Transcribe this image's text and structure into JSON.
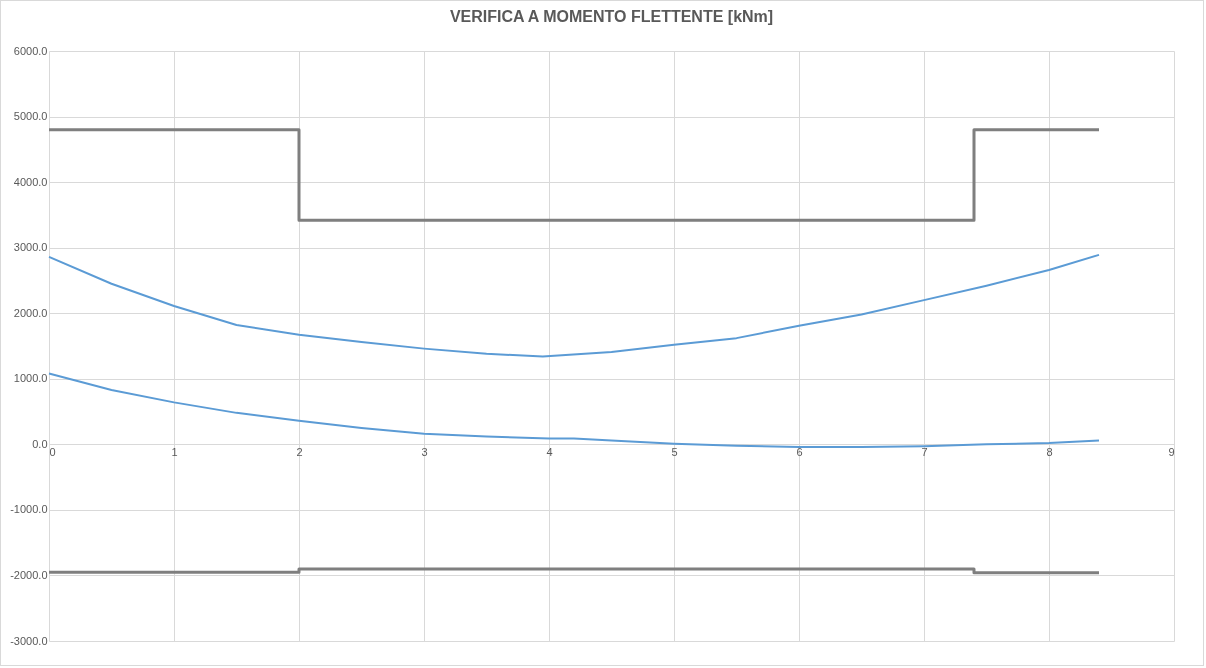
{
  "chart_data": {
    "type": "line",
    "title": "VERIFICA A MOMENTO FLETTENTE [kNm]",
    "series": [
      {
        "color": "#7f7f7f",
        "x": [
          0,
          2,
          2,
          7.4,
          7.4,
          8.4
        ],
        "values": [
          4800,
          4800,
          3420,
          3420,
          4800,
          4800
        ]
      },
      {
        "color": "#7f7f7f",
        "x": [
          0,
          2,
          2,
          7.4,
          7.4,
          8.4
        ],
        "values": [
          -1950,
          -1950,
          -1900,
          -1900,
          -1960,
          -1960
        ]
      },
      {
        "color": "#5b9bd5",
        "x": [
          0,
          0.5,
          1,
          1.5,
          2,
          2.5,
          3,
          3.5,
          3.95,
          4.5,
          5,
          5.5,
          6,
          6.5,
          7,
          7.5,
          8,
          8.4
        ],
        "values": [
          2860,
          2450,
          2110,
          1820,
          1670,
          1560,
          1460,
          1380,
          1340,
          1410,
          1520,
          1620,
          1810,
          1980,
          2200,
          2420,
          2660,
          2890
        ]
      },
      {
        "color": "#5b9bd5",
        "x": [
          0,
          0.5,
          1,
          1.5,
          2,
          2.5,
          3,
          3.5,
          4,
          4.2,
          4.5,
          5,
          5.5,
          6,
          6.5,
          7,
          7.5,
          8,
          8.4
        ],
        "values": [
          1080,
          830,
          640,
          480,
          360,
          250,
          160,
          120,
          90,
          90,
          60,
          10,
          -20,
          -40,
          -40,
          -30,
          0,
          20,
          60
        ]
      }
    ],
    "xlim": [
      0,
      9
    ],
    "xticks": [
      0,
      1,
      2,
      3,
      4,
      5,
      6,
      7,
      8,
      9
    ],
    "ylim": [
      -3000,
      6000
    ],
    "yticks": [
      {
        "value": -3000,
        "label": "-3000.0"
      },
      {
        "value": -2000,
        "label": "-2000.0"
      },
      {
        "value": -1000,
        "label": "-1000.0"
      },
      {
        "value": 0,
        "label": "0.0"
      },
      {
        "value": 1000,
        "label": "1000.0"
      },
      {
        "value": 2000,
        "label": "2000.0"
      },
      {
        "value": 3000,
        "label": "3000.0"
      },
      {
        "value": 4000,
        "label": "4000.0"
      },
      {
        "value": 5000,
        "label": "5000.0"
      },
      {
        "value": 6000,
        "label": "6000.0"
      }
    ],
    "grid": true
  }
}
